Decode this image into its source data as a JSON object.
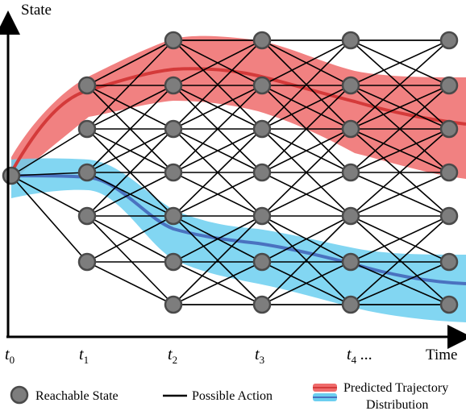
{
  "axis": {
    "y_label": "State",
    "x_label": "Time"
  },
  "ticks": [
    {
      "base": "t",
      "sub": "0",
      "suffix": ""
    },
    {
      "base": "t",
      "sub": "1",
      "suffix": ""
    },
    {
      "base": "t",
      "sub": "2",
      "suffix": ""
    },
    {
      "base": "t",
      "sub": "3",
      "suffix": ""
    },
    {
      "base": "t",
      "sub": "4",
      "suffix": " ..."
    }
  ],
  "legend": {
    "state": "Reachable State",
    "action": "Possible Action",
    "trajectory_line1": "Predicted Trajectory",
    "trajectory_line2": "Distribution"
  },
  "colors": {
    "red_band": "#ef6b6b",
    "red_line": "#d43a3a",
    "blue_band": "#6ccff0",
    "blue_line": "#4a72c0",
    "node_fill": "#7d7d7d",
    "node_stroke": "#4a4a4a"
  }
}
